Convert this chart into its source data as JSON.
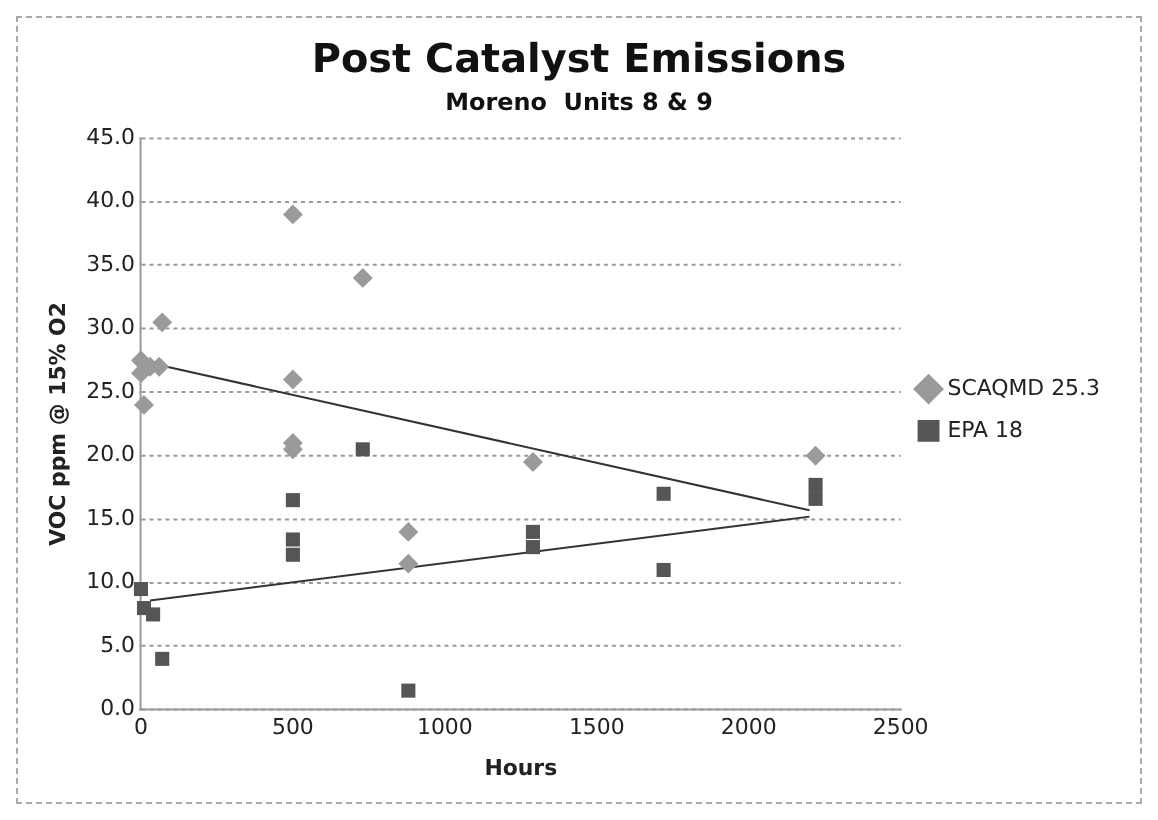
{
  "chart_data": {
    "type": "scatter",
    "title": "Post Catalyst Emissions",
    "subtitle": "Moreno  Units 8 & 9",
    "xlabel": "Hours",
    "ylabel": "VOC ppm @ 15% O2",
    "xlim": [
      0,
      2500
    ],
    "xticks": [
      0,
      500,
      1000,
      1500,
      2000,
      2500
    ],
    "ylim": [
      0,
      45
    ],
    "yticks": [
      {
        "value": 0,
        "label": "0.0"
      },
      {
        "value": 5,
        "label": "5.0"
      },
      {
        "value": 10,
        "label": "10.0"
      },
      {
        "value": 15,
        "label": "15.0"
      },
      {
        "value": 20,
        "label": "20.0"
      },
      {
        "value": 25,
        "label": "25.0"
      },
      {
        "value": 30,
        "label": "30.0"
      },
      {
        "value": 35,
        "label": "35.0"
      },
      {
        "value": 40,
        "label": "40.0"
      },
      {
        "value": 45,
        "label": "45.0"
      }
    ],
    "grid": "y",
    "legend": "right",
    "series": [
      {
        "name": "SCAQMD 25.3",
        "color": "#9a9a9a",
        "marker": "diamond",
        "x": [
          0,
          0,
          10,
          30,
          60,
          70,
          500,
          500,
          500,
          500,
          730,
          880,
          880,
          1290,
          2220
        ],
        "values": [
          27.5,
          26.5,
          24,
          27,
          27,
          30.5,
          39,
          26,
          21,
          20.5,
          34,
          14,
          11.5,
          19.5,
          20
        ]
      },
      {
        "name": "EPA 18",
        "color": "#555555",
        "marker": "square",
        "x": [
          0,
          10,
          40,
          70,
          500,
          500,
          500,
          730,
          880,
          1290,
          1290,
          1720,
          1720,
          2220,
          2220
        ],
        "values": [
          9.5,
          8,
          7.5,
          4,
          16.5,
          13.4,
          12.2,
          20.5,
          1.5,
          14,
          12.8,
          17,
          11,
          17.7,
          16.6
        ]
      },
      {
        "type": "line",
        "color": "#333333",
        "marker": "none",
        "x": [
          30,
          2200
        ],
        "values": [
          27.3,
          15.7
        ]
      },
      {
        "type": "line",
        "color": "#333333",
        "marker": "none",
        "x": [
          30,
          2200
        ],
        "values": [
          8.6,
          15.2
        ]
      }
    ]
  }
}
